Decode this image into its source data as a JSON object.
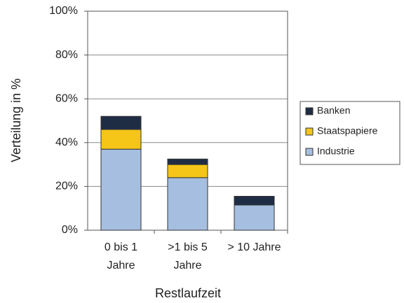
{
  "chart_data": {
    "type": "stacked_bar",
    "xlabel": "Restlaufzeit",
    "ylabel": "Verteilung in %",
    "categories": [
      "0 bis 1 Jahre",
      ">1 bis 5 Jahre",
      "> 10 Jahre"
    ],
    "series": [
      {
        "name": "Industrie",
        "color": "#a6bfe0",
        "values": [
          37,
          24,
          11.5
        ]
      },
      {
        "name": "Staatspapiere",
        "color": "#f5c518",
        "values": [
          9,
          6,
          0
        ]
      },
      {
        "name": "Banken",
        "color": "#1f2d44",
        "values": [
          6,
          2.5,
          4
        ]
      }
    ],
    "ylim": [
      0,
      100
    ],
    "yticks": [
      {
        "value": 0,
        "label": "0%"
      },
      {
        "value": 20,
        "label": "20%"
      },
      {
        "value": 40,
        "label": "40%"
      },
      {
        "value": 60,
        "label": "60%"
      },
      {
        "value": 80,
        "label": "80%"
      },
      {
        "value": 100,
        "label": "100%"
      }
    ],
    "grid": true,
    "legend": "right"
  }
}
